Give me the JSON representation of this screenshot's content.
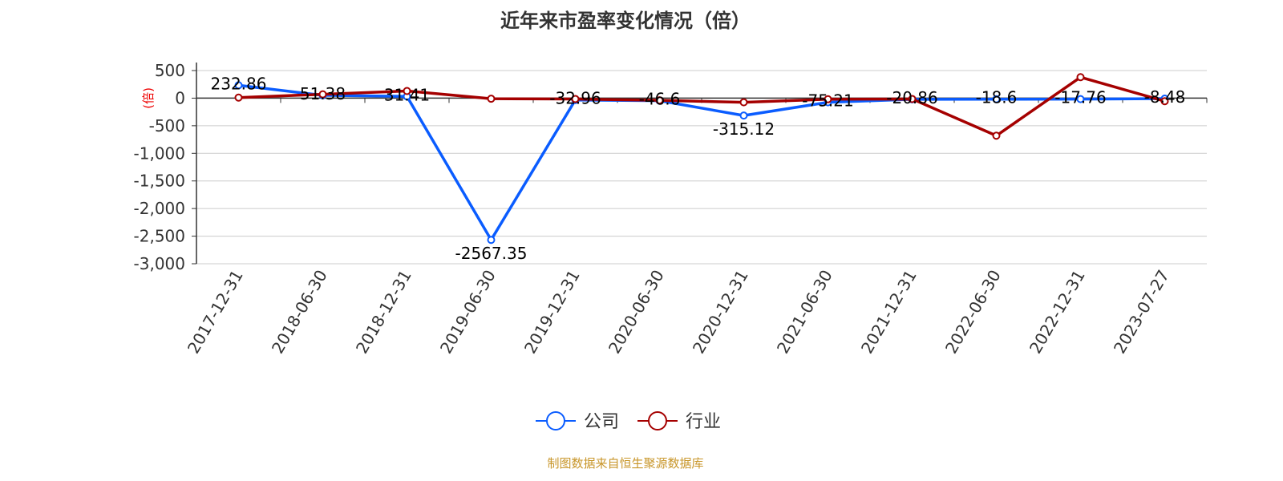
{
  "chart_data": {
    "type": "line",
    "title": "近年来市盈率变化情况（倍）",
    "ylabel": "(倍)",
    "categories": [
      "2017-12-31",
      "2018-06-30",
      "2018-12-31",
      "2019-06-30",
      "2019-12-31",
      "2020-06-30",
      "2020-12-31",
      "2021-06-30",
      "2021-12-31",
      "2022-06-30",
      "2022-12-31",
      "2023-07-27"
    ],
    "ylim": [
      -3000,
      500
    ],
    "yticks": [
      500,
      0,
      -500,
      -1000,
      -1500,
      -2000,
      -2500,
      -3000
    ],
    "ytick_labels": [
      "500",
      "0",
      "-500",
      "-1,000",
      "-1,500",
      "-2,000",
      "-2,500",
      "-3,000"
    ],
    "grid": true,
    "legend_placement": "bottom",
    "series": [
      {
        "name": "公司",
        "color": "#0a5cff",
        "values": [
          232.86,
          51.38,
          31.41,
          -2567.35,
          -32.96,
          -46.6,
          -315.12,
          -75.21,
          -20.86,
          -18.6,
          -17.76,
          -8.48
        ],
        "labels": [
          "232.86",
          "51.38",
          "31.41",
          "-2567.35",
          "-32.96",
          "-46.6",
          "-315.12",
          "-75.21",
          "-20.86",
          "-18.6",
          "-17.76",
          "-8.48"
        ]
      },
      {
        "name": "行业",
        "color": "#a50000",
        "values": [
          10,
          70,
          130,
          -10,
          -15,
          -40,
          -75,
          -20,
          -15,
          -680,
          380,
          -55
        ]
      }
    ]
  },
  "source": "制图数据来自恒生聚源数据库"
}
